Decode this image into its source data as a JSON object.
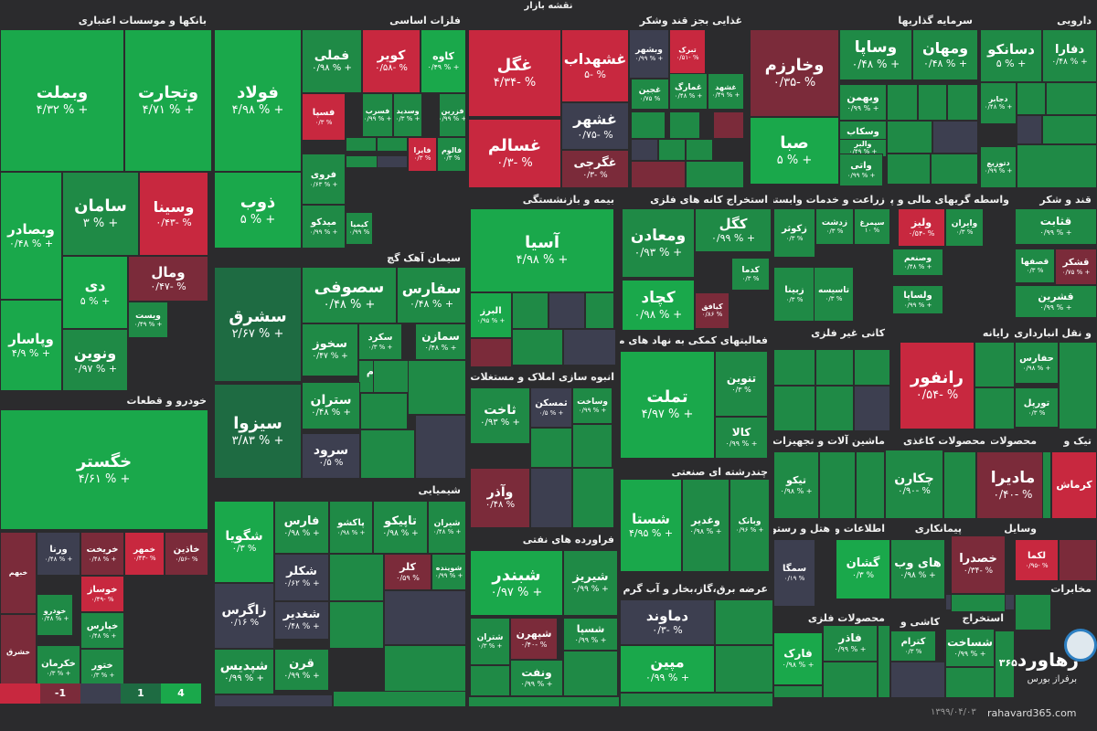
{
  "page_title": "نقشه بازار",
  "legend": [
    {
      "label": "",
      "color": "#c8283f"
    },
    {
      "label": "-1",
      "color": "#7b2b3a"
    },
    {
      "label": "",
      "color": "#3d3f50"
    },
    {
      "label": "1",
      "color": "#1e6b42"
    },
    {
      "label": "4",
      "color": "#1aa84b"
    }
  ],
  "footer": {
    "date": "۱۳۹۹/۰۴/۰۳",
    "website": "rahavard365.com"
  },
  "logo": {
    "word": "رهاورد",
    "number": "۳۶۵",
    "subtitle": "برفراز بورس"
  },
  "sectors": [
    {
      "name": "بانکها و موسسات اعتباری"
    },
    {
      "name": "فلزات اساسی"
    },
    {
      "name": "غذایی بجز قند وشکر"
    },
    {
      "name": "سرمایه گذاریها"
    },
    {
      "name": "دارویی"
    },
    {
      "name": "خودرو و قطعات"
    },
    {
      "name": "سیمان آهک گچ"
    },
    {
      "name": "بیمه و بازنشستگی"
    },
    {
      "name": "استخراج کانه های فلزی"
    },
    {
      "name": "زراعت و خدمات وابسته"
    },
    {
      "name": "واسطه گریهای مالی و پولی"
    },
    {
      "name": "قند و شکر"
    },
    {
      "name": "فعالیتهای کمکی به نهاد های مالی"
    },
    {
      "name": "انبوه سازی املاک و مستغلات"
    },
    {
      "name": "کانی غیر فلزی"
    },
    {
      "name": "رایانه"
    },
    {
      "name": "و نقل انبارداری و"
    },
    {
      "name": "چندرشته ای صنعتی"
    },
    {
      "name": "ماشین آلات و تجهیزات"
    },
    {
      "name": "محصولات کاغذی"
    },
    {
      "name": "محصولات"
    },
    {
      "name": "تیک و"
    },
    {
      "name": "شیمیایی"
    },
    {
      "name": "فراورده های نفتی"
    },
    {
      "name": "هتل و رستوران"
    },
    {
      "name": "اطلاعات و"
    },
    {
      "name": "پیمانکاری"
    },
    {
      "name": "وسایل"
    },
    {
      "name": "عرضه برق،گاز،بخار و آب گرم"
    },
    {
      "name": "فنی و"
    },
    {
      "name": "مخابرات"
    },
    {
      "name": "محصولات فلزی"
    },
    {
      "name": "کاشی و"
    },
    {
      "name": "استخراج"
    }
  ],
  "tiles": [
    {
      "name": "وبملت",
      "change": "۴/۳۲ % +"
    },
    {
      "name": "وتجارت",
      "change": "۴/۷۱ % +"
    },
    {
      "name": "سامان",
      "change": "۳ % +"
    },
    {
      "name": "وسینا",
      "change": "۰/۴۳- %"
    },
    {
      "name": "وبصادر",
      "change": "۰/۴۸ % +"
    },
    {
      "name": "دی",
      "change": "۵ % +"
    },
    {
      "name": "ومال",
      "change": "۰/۴۷- %"
    },
    {
      "name": "ویست",
      "change": "۰/۴۹ % +"
    },
    {
      "name": "ونوین",
      "change": "۰/۹۷ % +"
    },
    {
      "name": "وپاسار",
      "change": "۴/۹ % +"
    },
    {
      "name": "خگستر",
      "change": "۴/۶۱ % +"
    },
    {
      "name": "خاذین",
      "change": "۰/۵۶- %"
    },
    {
      "name": "خمهر",
      "change": "۰/۴۳- %"
    },
    {
      "name": "خریخت",
      "change": "۰/۴۸ % +"
    },
    {
      "name": "ورنا",
      "change": "۰/۴۸ % +"
    },
    {
      "name": "خوساز",
      "change": "۰/۴۹- %"
    },
    {
      "name": "خودرو",
      "change": "۰/۴۸ % +"
    },
    {
      "name": "خپارس",
      "change": "۰/۴۸ % +"
    },
    {
      "name": "خکرمان",
      "change": "۰/۳ % +"
    },
    {
      "name": "ختور",
      "change": "۰/۳ % +"
    },
    {
      "name": "خبهم",
      "change": ""
    },
    {
      "name": "خشرق",
      "change": ""
    },
    {
      "name": "فولاد",
      "change": "۴/۹۸ % +"
    },
    {
      "name": "فملی",
      "change": "۰/۹۸ % +"
    },
    {
      "name": "کویر",
      "change": "۰/۵۸- %"
    },
    {
      "name": "کاوه",
      "change": "۰/۴۹ % +"
    },
    {
      "name": "فسپا",
      "change": "۰/۳ %"
    },
    {
      "name": "فسرب",
      "change": "۰/۹۹ % +"
    },
    {
      "name": "وسدید",
      "change": "۰/۳ % +"
    },
    {
      "name": "فزرین",
      "change": "۰/۹۹ % +"
    },
    {
      "name": "فایرا",
      "change": "۰/۳ %"
    },
    {
      "name": "فالوم",
      "change": "۰/۳ %"
    },
    {
      "name": "ذوب",
      "change": "۵ % +"
    },
    {
      "name": "فروی",
      "change": "۰/۶۳ % +"
    },
    {
      "name": "میدکو",
      "change": "۰/۹۹ % +"
    },
    {
      "name": "کیمیا",
      "change": "۰/۹۹ %"
    },
    {
      "name": "غگل",
      "change": "۴/۳۴- %"
    },
    {
      "name": "غشهداب",
      "change": "۵- %"
    },
    {
      "name": "غسالم",
      "change": "۰/۳- %"
    },
    {
      "name": "غشهر",
      "change": "۰/۷۵- %"
    },
    {
      "name": "غگرجی",
      "change": "۰/۳- %"
    },
    {
      "name": "وبشهر",
      "change": "۰/۹۹ % +"
    },
    {
      "name": "تبرک",
      "change": "۰/۵۱- %"
    },
    {
      "name": "غجین",
      "change": "۰/۷۵ %"
    },
    {
      "name": "غمارگ",
      "change": "۰/۴۸ % +"
    },
    {
      "name": "غشهد",
      "change": "۰/۴۹ % +"
    },
    {
      "name": "وخارزم",
      "change": "۰/۳۵- %"
    },
    {
      "name": "وساپا",
      "change": "۰/۴۸ % +"
    },
    {
      "name": "ومهان",
      "change": "۰/۴۸ % +"
    },
    {
      "name": "وبهمن",
      "change": "۰/۹۹ % +"
    },
    {
      "name": "وسکاب",
      "change": "۰/۴۸ % +"
    },
    {
      "name": "صبا",
      "change": "۵ % +"
    },
    {
      "name": "والبر",
      "change": "۰/۴۹ % +"
    },
    {
      "name": "واتی",
      "change": "۰/۹۹ % +"
    },
    {
      "name": "دسانکو",
      "change": "۵ % +"
    },
    {
      "name": "دفارا",
      "change": "۰/۴۸ % +"
    },
    {
      "name": "دجابر",
      "change": "۰/۴۸ % +"
    },
    {
      "name": "دتوزیع",
      "change": "۰/۹۹ % +"
    },
    {
      "name": "سشرق",
      "change": "۲/۶۷ % +"
    },
    {
      "name": "سصوفی",
      "change": "۰/۴۸ % +"
    },
    {
      "name": "سفارس",
      "change": "۰/۴۸ % +"
    },
    {
      "name": "سخوز",
      "change": "۰/۴۷ % +"
    },
    {
      "name": "سکرد",
      "change": "۰/۳ % +"
    },
    {
      "name": "سمازن",
      "change": "۰/۴۸ % +"
    },
    {
      "name": "ساروم",
      "change": "۰/۳ %"
    },
    {
      "name": "سیزوا",
      "change": "۳/۸۳ % +"
    },
    {
      "name": "ستران",
      "change": "۰/۴۸ % +"
    },
    {
      "name": "سرود",
      "change": "۰/۵ %"
    },
    {
      "name": "آسیا",
      "change": "۴/۹۸ % +"
    },
    {
      "name": "البرز",
      "change": "۰/۹۵ % +"
    },
    {
      "name": "ومعادن",
      "change": "۰/۹۳ % +"
    },
    {
      "name": "کگل",
      "change": "۰/۹۹ % +"
    },
    {
      "name": "کدما",
      "change": "۰/۳ %"
    },
    {
      "name": "کچاد",
      "change": "۰/۹۸ % +"
    },
    {
      "name": "کیافق",
      "change": "۰/۸۶ %"
    },
    {
      "name": "زکوثر",
      "change": "۰/۳ %"
    },
    {
      "name": "زدشت",
      "change": "۰/۳ %"
    },
    {
      "name": "سیمرغ",
      "change": "۱۰ %"
    },
    {
      "name": "زبینا",
      "change": "۰/۳ %"
    },
    {
      "name": "تاسیسه",
      "change": "۰/۳ %"
    },
    {
      "name": "ولیز",
      "change": "۰/۵۴- %"
    },
    {
      "name": "وایران",
      "change": "۰/۳ %"
    },
    {
      "name": "وصنعم",
      "change": "۰/۴۸ % +"
    },
    {
      "name": "ولساپا",
      "change": "۰/۹۹ % +"
    },
    {
      "name": "قثابت",
      "change": "۰/۹۹ % +"
    },
    {
      "name": "قصفها",
      "change": "۰/۳ %"
    },
    {
      "name": "قشکر",
      "change": "۰/۷۵ % +"
    },
    {
      "name": "قشرین",
      "change": "۰/۹۹ % +"
    },
    {
      "name": "تملت",
      "change": "۴/۹۷ % +"
    },
    {
      "name": "تنوین",
      "change": "۰/۳ %"
    },
    {
      "name": "کالا",
      "change": "۰/۹۹ % +"
    },
    {
      "name": "ثاخت",
      "change": "۰/۹۳ % +"
    },
    {
      "name": "ثمسکن",
      "change": "۰/۵ % +"
    },
    {
      "name": "وساخت",
      "change": "۰/۹۹ % +"
    },
    {
      "name": "وآذر",
      "change": "۰/۴۸ %"
    },
    {
      "name": "رانفور",
      "change": "۰/۵۴- %"
    },
    {
      "name": "حفارس",
      "change": "۰/۹۸ % +"
    },
    {
      "name": "تورپل",
      "change": "۰/۳ %"
    },
    {
      "name": "شستا",
      "change": "۴/۹۵ % +"
    },
    {
      "name": "وغدیر",
      "change": "۰/۹۸ % +"
    },
    {
      "name": "وبانک",
      "change": "۰/۹۶ % +"
    },
    {
      "name": "تیکو",
      "change": "۰/۹۸ % +"
    },
    {
      "name": "چکارن",
      "change": "۰/۹۰- %"
    },
    {
      "name": "مادیرا",
      "change": "۰/۴۰- %"
    },
    {
      "name": "کرماش",
      "change": ""
    },
    {
      "name": "شگویا",
      "change": "۰/۳ %"
    },
    {
      "name": "فارس",
      "change": "۰/۹۸ % +"
    },
    {
      "name": "پاکشو",
      "change": "۰/۹۸ % +"
    },
    {
      "name": "تاپیکو",
      "change": "۰/۹۸ % +"
    },
    {
      "name": "شیران",
      "change": "۰/۴۸ % +"
    },
    {
      "name": "شکلر",
      "change": "۰/۶۲ % +"
    },
    {
      "name": "کلر",
      "change": "۰/۵۹ %"
    },
    {
      "name": "شوینده",
      "change": "۰/۹۹ % +"
    },
    {
      "name": "زاگرس",
      "change": "۰/۱۶ %"
    },
    {
      "name": "شغدیر",
      "change": "۰/۴۸ % +"
    },
    {
      "name": "شپدیس",
      "change": "۰/۹۹ % +"
    },
    {
      "name": "قرن",
      "change": "۰/۹۹ % +"
    },
    {
      "name": "شبندر",
      "change": "۰/۹۷ % +"
    },
    {
      "name": "شیریز",
      "change": "۰/۹۹ % +"
    },
    {
      "name": "شتران",
      "change": "۰/۳ % +"
    },
    {
      "name": "شپهرن",
      "change": "۰/۴۰- %"
    },
    {
      "name": "شسپا",
      "change": "۰/۹۹ % +"
    },
    {
      "name": "ونفت",
      "change": "۰/۹۹ % +"
    },
    {
      "name": "سمگا",
      "change": "۰/۱۹ %"
    },
    {
      "name": "گشان",
      "change": "۰/۳ %"
    },
    {
      "name": "های وب",
      "change": "۰/۹۸ % +"
    },
    {
      "name": "خصدرا",
      "change": "۰/۳۴- %"
    },
    {
      "name": "لکما",
      "change": "۰/۹۵- %"
    },
    {
      "name": "دماوند",
      "change": "۰/۳- %"
    },
    {
      "name": "مپین",
      "change": "۰/۹۹ % +"
    },
    {
      "name": "فاذر",
      "change": "۰/۹۹ % +"
    },
    {
      "name": "فارک",
      "change": "۰/۹۸ % +"
    },
    {
      "name": "کترام",
      "change": "۰/۳ %"
    },
    {
      "name": "شساخت",
      "change": "۰/۹۹ % +"
    }
  ]
}
